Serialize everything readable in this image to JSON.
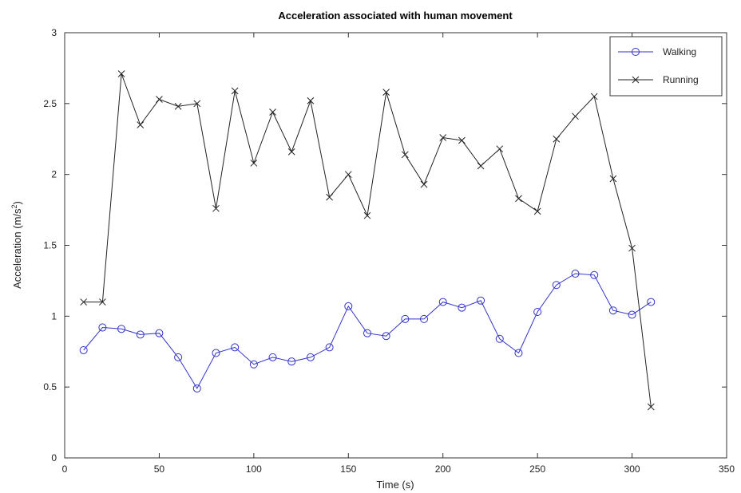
{
  "chart_data": {
    "type": "line",
    "title": "Acceleration associated with human movement",
    "xlabel": "Time (s)",
    "ylabel_main": "Acceleration (m/s",
    "ylabel_sup": "2",
    "ylabel_tail": ")",
    "xlim": [
      0,
      350
    ],
    "ylim": [
      0,
      3
    ],
    "xticks": [
      0,
      50,
      100,
      150,
      200,
      250,
      300,
      350
    ],
    "yticks": [
      0,
      0.5,
      1,
      1.5,
      2,
      2.5,
      3
    ],
    "xtick_labels": [
      "0",
      "50",
      "100",
      "150",
      "200",
      "250",
      "300",
      "350"
    ],
    "ytick_labels": [
      "0",
      "0.5",
      "1",
      "1.5",
      "2",
      "2.5",
      "3"
    ],
    "grid": false,
    "legend_position": "top-right",
    "x": [
      10,
      20,
      30,
      40,
      50,
      60,
      70,
      80,
      90,
      100,
      110,
      120,
      130,
      140,
      150,
      160,
      170,
      180,
      190,
      200,
      210,
      220,
      230,
      240,
      250,
      260,
      270,
      280,
      290,
      300,
      310
    ],
    "series": [
      {
        "name": "Walking",
        "color": "#3333cc",
        "marker": "circle",
        "values": [
          0.76,
          0.92,
          0.91,
          0.87,
          0.88,
          0.71,
          0.49,
          0.74,
          0.78,
          0.66,
          0.71,
          0.68,
          0.71,
          0.78,
          1.07,
          0.88,
          0.86,
          0.98,
          0.98,
          1.1,
          1.06,
          1.11,
          0.84,
          0.74,
          1.03,
          1.22,
          1.3,
          1.29,
          1.04,
          1.01,
          1.1
        ]
      },
      {
        "name": "Running",
        "color": "#222222",
        "marker": "x",
        "values": [
          1.1,
          1.1,
          2.71,
          2.35,
          2.53,
          2.48,
          2.5,
          1.76,
          2.59,
          2.08,
          2.44,
          2.16,
          2.52,
          1.84,
          2.0,
          1.71,
          2.58,
          2.14,
          1.93,
          2.26,
          2.24,
          2.06,
          2.18,
          1.83,
          1.74,
          2.25,
          2.41,
          2.55,
          1.97,
          1.48,
          0.36
        ]
      }
    ]
  }
}
